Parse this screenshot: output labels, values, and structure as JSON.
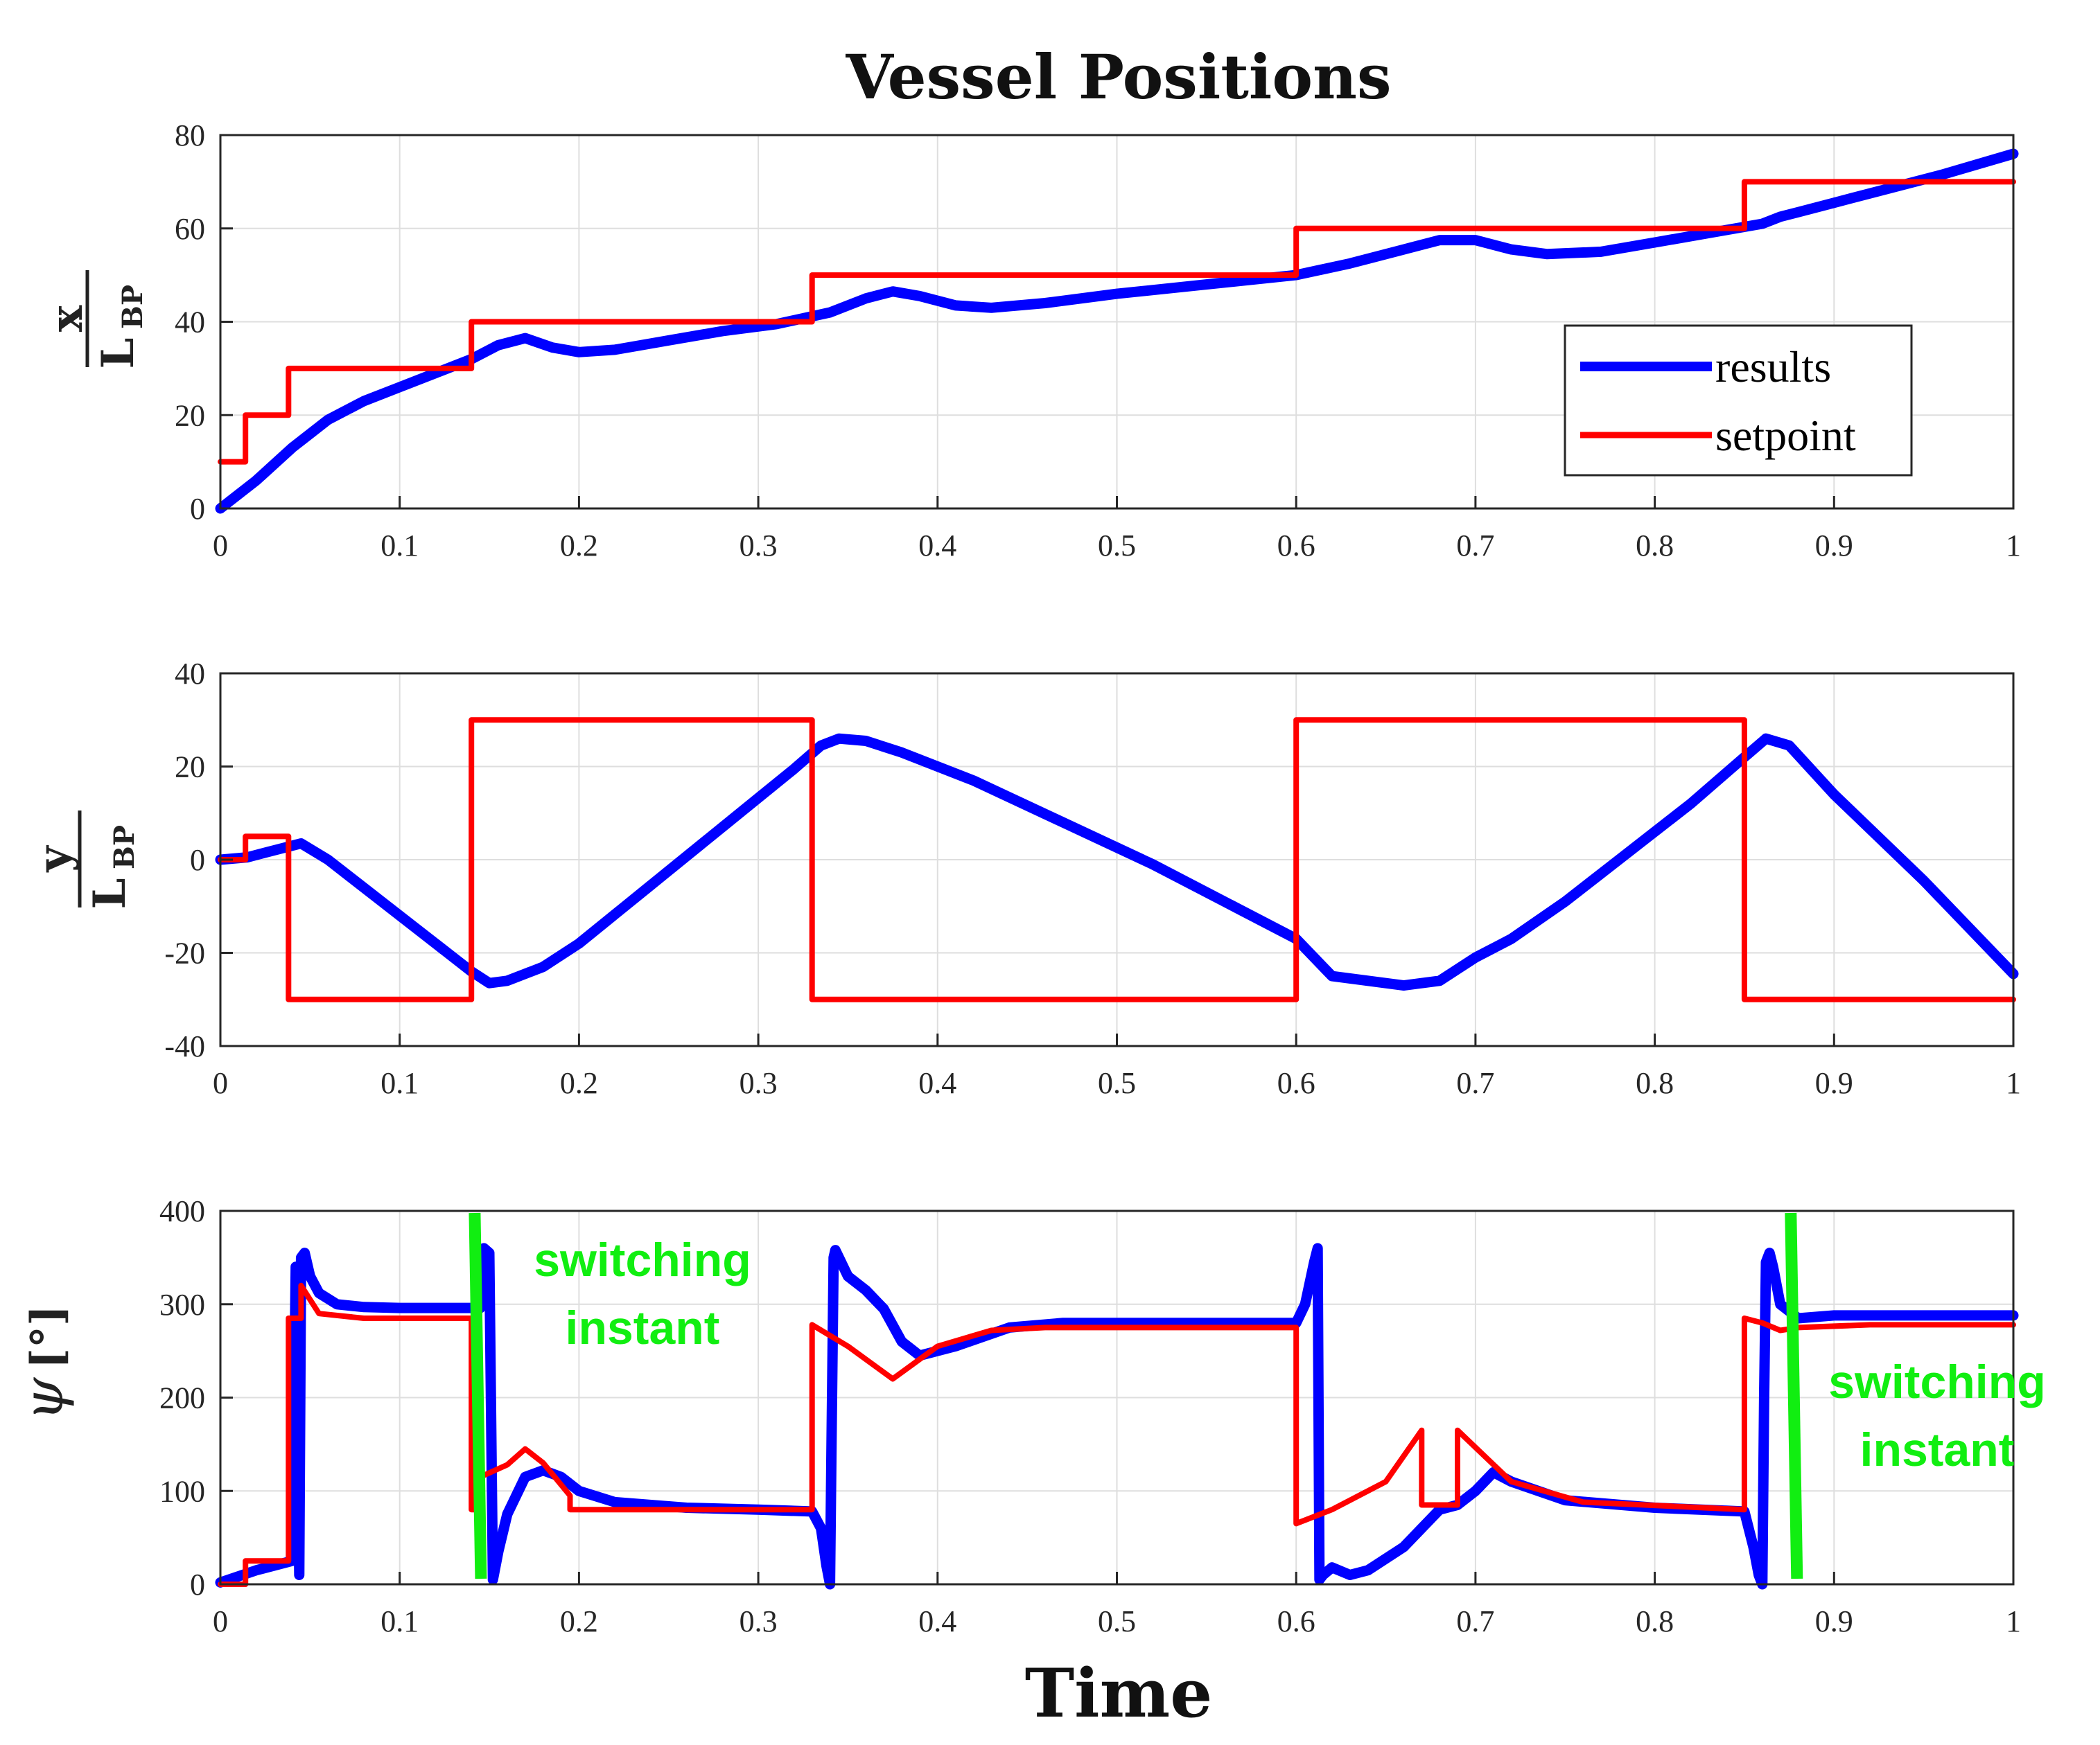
{
  "chart_data": {
    "title": "Vessel Positions",
    "xlabel": "Time",
    "colors": {
      "results": "#0000ff",
      "setpoint": "#ff0000",
      "annotation": "#11ee11",
      "grid": "#dedede"
    },
    "legend": {
      "location": "bottom-right of top panel",
      "entries": [
        "results",
        "setpoint"
      ]
    },
    "x_ticks": [
      "0",
      "0.1",
      "0.2",
      "0.3",
      "0.4",
      "0.5",
      "0.6",
      "0.7",
      "0.8",
      "0.9",
      "1"
    ],
    "panels": [
      {
        "name": "x-position",
        "type": "line",
        "ylabel_num": "x",
        "ylabel_den": "L",
        "ylabel_den_sub": "BP",
        "xlim": [
          0,
          1
        ],
        "ylim": [
          0,
          80
        ],
        "y_ticks": [
          "0",
          "20",
          "40",
          "60",
          "80"
        ],
        "series": [
          {
            "name": "results",
            "x": [
              0,
              0.02,
              0.04,
              0.06,
              0.08,
              0.1,
              0.12,
              0.14,
              0.155,
              0.17,
              0.185,
              0.2,
              0.22,
              0.25,
              0.28,
              0.31,
              0.34,
              0.36,
              0.375,
              0.39,
              0.41,
              0.43,
              0.46,
              0.5,
              0.55,
              0.6,
              0.63,
              0.66,
              0.68,
              0.7,
              0.72,
              0.74,
              0.77,
              0.8,
              0.83,
              0.86,
              0.87,
              0.88,
              0.9,
              0.93,
              0.96,
              1.0
            ],
            "y": [
              0,
              6,
              13,
              19,
              23,
              26,
              29,
              32,
              35,
              36.5,
              34.5,
              33.5,
              34,
              36,
              38,
              39.5,
              42,
              45,
              46.5,
              45.5,
              43.5,
              43,
              44,
              46,
              48,
              50,
              52.5,
              55.5,
              57.5,
              57.5,
              55.5,
              54.5,
              55,
              57,
              59,
              61,
              62.5,
              63.5,
              65.5,
              68.5,
              71.5,
              76
            ]
          },
          {
            "name": "setpoint",
            "x": [
              0,
              0.014,
              0.014,
              0.038,
              0.038,
              0.14,
              0.14,
              0.33,
              0.33,
              0.6,
              0.6,
              0.85,
              0.85,
              1.0
            ],
            "y": [
              10,
              10,
              20,
              20,
              30,
              30,
              40,
              40,
              50,
              50,
              60,
              60,
              70,
              70
            ]
          }
        ]
      },
      {
        "name": "y-position",
        "type": "line",
        "ylabel_num": "y",
        "ylabel_den": "L",
        "ylabel_den_sub": "BP",
        "xlim": [
          0,
          1
        ],
        "ylim": [
          -40,
          40
        ],
        "y_ticks": [
          "-40",
          "-20",
          "0",
          "20",
          "40"
        ],
        "series": [
          {
            "name": "results",
            "x": [
              0,
              0.015,
              0.03,
              0.045,
              0.06,
              0.09,
              0.12,
              0.14,
              0.15,
              0.16,
              0.18,
              0.2,
              0.24,
              0.28,
              0.32,
              0.335,
              0.345,
              0.36,
              0.38,
              0.42,
              0.47,
              0.52,
              0.56,
              0.6,
              0.62,
              0.64,
              0.66,
              0.68,
              0.7,
              0.72,
              0.75,
              0.78,
              0.82,
              0.85,
              0.862,
              0.875,
              0.9,
              0.95,
              1.0
            ],
            "y": [
              0,
              0.5,
              2,
              3.5,
              0,
              -9,
              -18,
              -24,
              -26.5,
              -26,
              -23,
              -18,
              -5.5,
              7,
              19.5,
              24.5,
              26,
              25.5,
              23,
              17,
              8,
              -1,
              -9,
              -17,
              -25,
              -26,
              -27,
              -26,
              -21,
              -17,
              -9,
              0,
              12,
              22,
              26,
              24.5,
              14,
              -4.5,
              -24.5
            ]
          },
          {
            "name": "setpoint",
            "x": [
              0,
              0.014,
              0.014,
              0.038,
              0.038,
              0.14,
              0.14,
              0.33,
              0.33,
              0.6,
              0.6,
              0.85,
              0.85,
              1.0
            ],
            "y": [
              0,
              0,
              5,
              5,
              -30,
              -30,
              30,
              30,
              -30,
              -30,
              30,
              30,
              -30,
              -30
            ]
          }
        ]
      },
      {
        "name": "heading",
        "type": "line",
        "ylabel_symbol": "ψ",
        "ylabel_unit": "[°]",
        "xlim": [
          0,
          1
        ],
        "ylim": [
          0,
          400
        ],
        "y_ticks": [
          "0",
          "100",
          "200",
          "300",
          "400"
        ],
        "series": [
          {
            "name": "results",
            "x": [
              0,
              0.02,
              0.04,
              0.041,
              0.042,
              0.044,
              0.045,
              0.047,
              0.05,
              0.055,
              0.065,
              0.08,
              0.1,
              0.13,
              0.145,
              0.147,
              0.15,
              0.152,
              0.155,
              0.16,
              0.17,
              0.18,
              0.19,
              0.2,
              0.22,
              0.26,
              0.3,
              0.33,
              0.335,
              0.338,
              0.34,
              0.341,
              0.342,
              0.343,
              0.345,
              0.35,
              0.36,
              0.37,
              0.38,
              0.39,
              0.41,
              0.44,
              0.47,
              0.5,
              0.55,
              0.6,
              0.605,
              0.61,
              0.612,
              0.613,
              0.615,
              0.62,
              0.63,
              0.64,
              0.66,
              0.68,
              0.69,
              0.7,
              0.71,
              0.72,
              0.75,
              0.8,
              0.85,
              0.855,
              0.858,
              0.86,
              0.861,
              0.862,
              0.864,
              0.866,
              0.87,
              0.88,
              0.9,
              0.95,
              1.0
            ],
            "y": [
              2,
              15,
              25,
              180,
              340,
              10,
              350,
              355,
              330,
              312,
              300,
              297,
              296,
              296,
              296,
              360,
              355,
              5,
              35,
              75,
              115,
              122,
              115,
              100,
              88,
              82,
              80,
              78,
              60,
              20,
              0,
              180,
              350,
              358,
              350,
              330,
              315,
              295,
              260,
              245,
              255,
              275,
              280,
              280,
              280,
              280,
              300,
              345,
              360,
              5,
              10,
              18,
              10,
              15,
              40,
              80,
              85,
              100,
              120,
              110,
              90,
              82,
              78,
              40,
              10,
              0,
              200,
              345,
              355,
              340,
              300,
              285,
              288,
              288,
              288
            ]
          },
          {
            "name": "setpoint",
            "x": [
              0,
              0.014,
              0.014,
              0.038,
              0.038,
              0.045,
              0.045,
              0.055,
              0.08,
              0.14,
              0.14,
              0.143,
              0.145,
              0.16,
              0.17,
              0.18,
              0.195,
              0.195,
              0.22,
              0.33,
              0.33,
              0.35,
              0.375,
              0.4,
              0.43,
              0.46,
              0.6,
              0.6,
              0.62,
              0.65,
              0.67,
              0.67,
              0.69,
              0.69,
              0.72,
              0.76,
              0.85,
              0.85,
              0.86,
              0.87,
              0.88,
              0.92,
              1.0
            ],
            "y": [
              0,
              0,
              25,
              25,
              285,
              285,
              320,
              290,
              285,
              285,
              80,
              80,
              115,
              128,
              145,
              130,
              95,
              80,
              80,
              80,
              278,
              255,
              220,
              255,
              272,
              275,
              275,
              65,
              80,
              110,
              165,
              85,
              85,
              165,
              110,
              88,
              80,
              285,
              280,
              272,
              275,
              278,
              278
            ]
          }
        ],
        "annotations": [
          {
            "line1": "switching",
            "line2": "instant",
            "x": 0.143
          },
          {
            "line1": "switching",
            "line2": "instant",
            "x": 0.877
          }
        ]
      }
    ]
  }
}
